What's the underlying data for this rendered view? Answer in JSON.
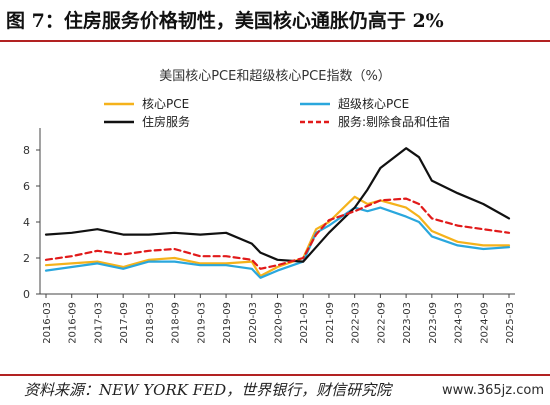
{
  "figure_title": "图 7：住房服务价格韧性，美国核心通胀仍高于 2%",
  "source_text": "资料来源：NEW YORK FED，世界银行，财信研究院",
  "watermark": "www.365jz.com",
  "chart_data": {
    "type": "line",
    "title": "美国核心PCE和超级核心PCE指数（%）",
    "xlabel": "",
    "ylabel": "",
    "ylim": [
      0,
      9
    ],
    "yticks": [
      0,
      2,
      4,
      6,
      8
    ],
    "grid": false,
    "legend_position": "top",
    "xtick_labels": [
      "2016-03",
      "2016-09",
      "2017-03",
      "2017-09",
      "2018-03",
      "2018-09",
      "2019-03",
      "2019-09",
      "2020-03",
      "2020-09",
      "2021-03",
      "2021-09",
      "2022-03",
      "2022-09",
      "2023-03",
      "2023-09",
      "2024-03",
      "2024-09",
      "2025-03"
    ],
    "x": [
      "2016-03",
      "2016-09",
      "2017-03",
      "2017-09",
      "2018-03",
      "2018-09",
      "2019-03",
      "2019-09",
      "2020-03",
      "2020-05",
      "2020-09",
      "2021-03",
      "2021-06",
      "2021-09",
      "2022-03",
      "2022-06",
      "2022-09",
      "2023-03",
      "2023-06",
      "2023-09",
      "2024-03",
      "2024-09",
      "2025-03"
    ],
    "series": [
      {
        "name": "核心PCE",
        "color": "#f5b21b",
        "dash": false,
        "values": [
          1.6,
          1.7,
          1.8,
          1.5,
          1.9,
          2.0,
          1.7,
          1.7,
          1.8,
          1.0,
          1.5,
          2.0,
          3.6,
          4.0,
          5.4,
          5.0,
          5.2,
          4.8,
          4.3,
          3.5,
          2.9,
          2.7,
          2.7
        ]
      },
      {
        "name": "超级核心PCE",
        "color": "#2aa7dd",
        "dash": false,
        "values": [
          1.3,
          1.5,
          1.7,
          1.4,
          1.8,
          1.8,
          1.6,
          1.6,
          1.4,
          0.9,
          1.3,
          1.8,
          3.4,
          3.8,
          4.8,
          4.6,
          4.8,
          4.3,
          4.0,
          3.2,
          2.7,
          2.5,
          2.6
        ]
      },
      {
        "name": "住房服务",
        "color": "#111111",
        "dash": false,
        "values": [
          3.3,
          3.4,
          3.6,
          3.3,
          3.3,
          3.4,
          3.3,
          3.4,
          2.8,
          2.3,
          1.9,
          1.8,
          2.6,
          3.4,
          4.8,
          5.8,
          7.0,
          8.1,
          7.6,
          6.3,
          5.6,
          5.0,
          4.2
        ]
      },
      {
        "name": "服务:剔除食品和住宿",
        "color": "#e11a1a",
        "dash": true,
        "values": [
          1.9,
          2.1,
          2.4,
          2.2,
          2.4,
          2.5,
          2.1,
          2.1,
          1.9,
          1.4,
          1.6,
          2.0,
          3.3,
          4.1,
          4.6,
          4.9,
          5.2,
          5.3,
          5.0,
          4.2,
          3.8,
          3.6,
          3.4
        ]
      }
    ]
  }
}
